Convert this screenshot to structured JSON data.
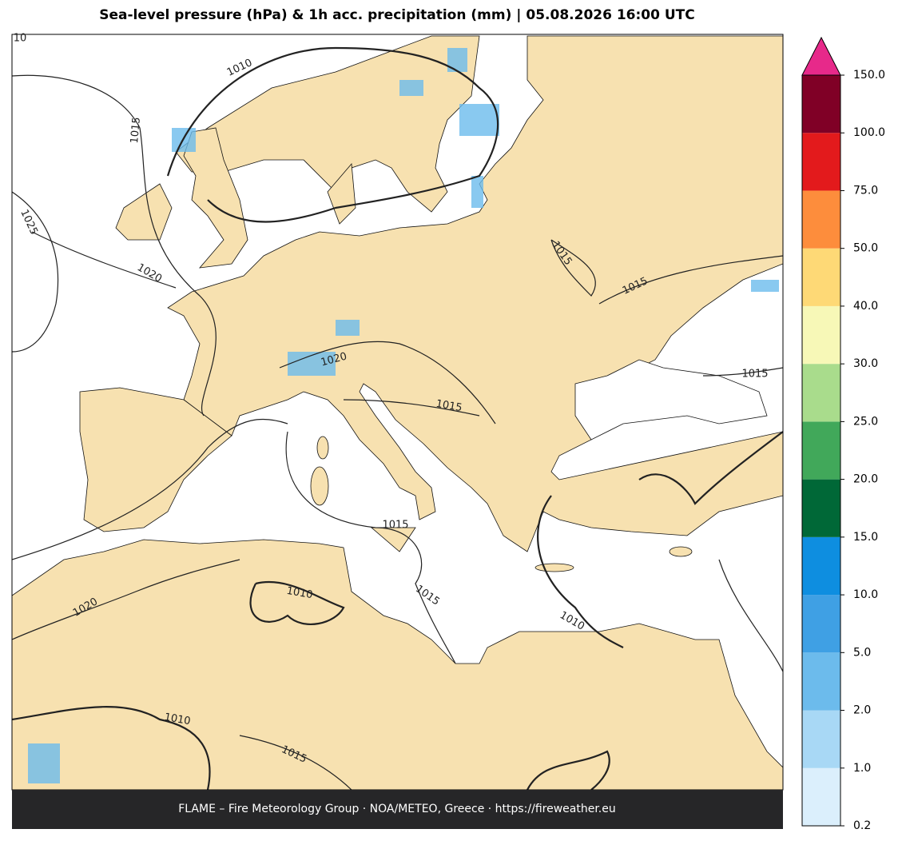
{
  "title": "Sea-level pressure (hPa) & 1h acc. precipitation (mm)  |  05.08.2026 16:00 UTC",
  "footer": "FLAME – Fire Meteorology Group · NOA/METEO, Greece · https://fireweather.eu",
  "contour_labels": [
    10,
    1010,
    1015,
    1025,
    1020,
    1020,
    1015,
    1015,
    1015,
    1015,
    1015,
    1010,
    1015,
    1010,
    1020,
    1010,
    1015
  ],
  "colorbar": {
    "ticks": [
      {
        "value": 0.2,
        "label": "0.2"
      },
      {
        "value": 1,
        "label": "1.0"
      },
      {
        "value": 2,
        "label": "2.0"
      },
      {
        "value": 5,
        "label": "5.0"
      },
      {
        "value": 10,
        "label": "10.0"
      },
      {
        "value": 15,
        "label": "15.0"
      },
      {
        "value": 20,
        "label": "20.0"
      },
      {
        "value": 25,
        "label": "25.0"
      },
      {
        "value": 30,
        "label": "30.0"
      },
      {
        "value": 40,
        "label": "40.0"
      },
      {
        "value": 50,
        "label": "50.0"
      },
      {
        "value": 75,
        "label": "75.0"
      },
      {
        "value": 100,
        "label": "100.0"
      },
      {
        "value": 150,
        "label": "150.0"
      }
    ],
    "colors": [
      "#dbeffc",
      "#a8d8f5",
      "#6cbbec",
      "#3fa0e4",
      "#0e8ee0",
      "#006837",
      "#41a85a",
      "#a9dc8c",
      "#f7f8b7",
      "#fed976",
      "#fd8d3c",
      "#e31a1c",
      "#800026"
    ],
    "extend_color": "#e7298a"
  }
}
